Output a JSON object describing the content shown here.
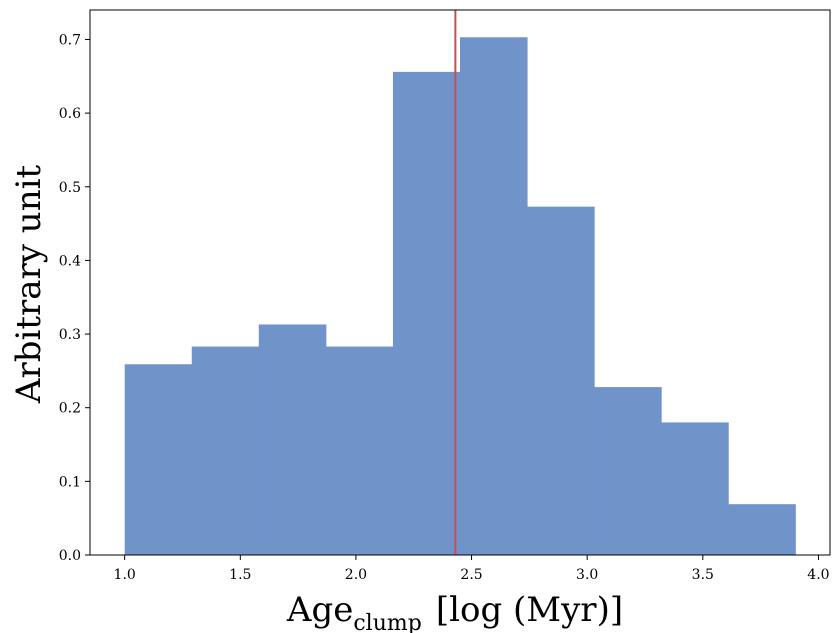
{
  "chart_data": {
    "type": "bar",
    "subtype": "histogram",
    "bin_edges": [
      1.0,
      1.29,
      1.58,
      1.87,
      2.16,
      2.45,
      2.74,
      3.03,
      3.32,
      3.61,
      3.9
    ],
    "values": [
      0.259,
      0.283,
      0.313,
      0.283,
      0.656,
      0.703,
      0.473,
      0.228,
      0.18,
      0.069
    ],
    "bar_color": "#7093ca",
    "vline": {
      "x": 2.43,
      "color": "#cc4f4f"
    },
    "xlim": [
      0.85,
      4.05
    ],
    "ylim": [
      0.0,
      0.74
    ],
    "x_ticks": [
      1.0,
      1.5,
      2.0,
      2.5,
      3.0,
      3.5,
      4.0
    ],
    "x_tick_labels": [
      "1.0",
      "1.5",
      "2.0",
      "2.5",
      "3.0",
      "3.5",
      "4.0"
    ],
    "y_ticks": [
      0.0,
      0.1,
      0.2,
      0.3,
      0.4,
      0.5,
      0.6,
      0.7
    ],
    "y_tick_labels": [
      "0.0",
      "0.1",
      "0.2",
      "0.3",
      "0.4",
      "0.5",
      "0.6",
      "0.7"
    ],
    "xlabel_main": "Age",
    "xlabel_sub": "clump",
    "xlabel_units": "[log (Myr)]",
    "ylabel": "Arbitrary unit",
    "grid": false
  }
}
